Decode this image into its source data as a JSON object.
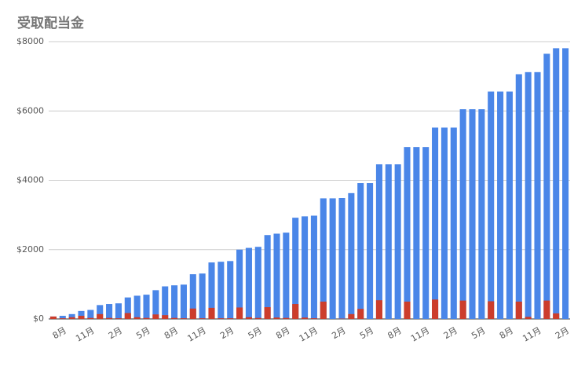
{
  "chart_data": {
    "type": "bar",
    "overlap": true,
    "title": "受取配当金",
    "categories": [
      null,
      "8月",
      null,
      null,
      "11月",
      null,
      null,
      "2月",
      null,
      null,
      "5月",
      null,
      null,
      "8月",
      null,
      null,
      "11月",
      null,
      null,
      "2月",
      null,
      null,
      "5月",
      null,
      null,
      "8月",
      null,
      null,
      "11月",
      null,
      null,
      "2月",
      null,
      null,
      "5月",
      null,
      null,
      "8月",
      null,
      null,
      "11月",
      null,
      null,
      "2月",
      null,
      null,
      "5月",
      null,
      null,
      "8月",
      null,
      null,
      "11月",
      null,
      null,
      "2月"
    ],
    "series": [
      {
        "color": "#4a86e8",
        "values": [
          70,
          90,
          140,
          230,
          260,
          400,
          430,
          450,
          620,
          670,
          700,
          830,
          940,
          970,
          990,
          1290,
          1310,
          1630,
          1650,
          1670,
          2000,
          2050,
          2080,
          2420,
          2460,
          2490,
          2920,
          2960,
          2980,
          3480,
          3480,
          3490,
          3630,
          3920,
          3920,
          4460,
          4460,
          4460,
          4960,
          4960,
          4960,
          5520,
          5520,
          5520,
          6050,
          6050,
          6050,
          6560,
          6560,
          6560,
          7060,
          7120,
          7120,
          7650,
          7810,
          7810
        ]
      },
      {
        "color": "#cc3d2b",
        "values": [
          70,
          20,
          50,
          90,
          30,
          140,
          30,
          20,
          170,
          50,
          30,
          130,
          110,
          30,
          20,
          300,
          20,
          320,
          20,
          20,
          330,
          50,
          30,
          340,
          40,
          30,
          430,
          40,
          20,
          500,
          0,
          10,
          140,
          290,
          0,
          540,
          0,
          0,
          500,
          0,
          0,
          560,
          0,
          0,
          530,
          0,
          0,
          510,
          0,
          0,
          500,
          60,
          0,
          530,
          160,
          0
        ]
      }
    ],
    "ylim": [
      0,
      8000
    ],
    "yticks": [
      {
        "value": 0,
        "label": "$0"
      },
      {
        "value": 2000,
        "label": "$2000"
      },
      {
        "value": 4000,
        "label": "$4000"
      },
      {
        "value": 6000,
        "label": "$6000"
      },
      {
        "value": 8000,
        "label": "$8000"
      }
    ],
    "grid": true
  }
}
